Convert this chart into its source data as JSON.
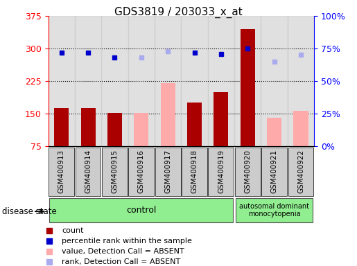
{
  "title": "GDS3819 / 203033_x_at",
  "samples": [
    "GSM400913",
    "GSM400914",
    "GSM400915",
    "GSM400916",
    "GSM400917",
    "GSM400918",
    "GSM400919",
    "GSM400920",
    "GSM400921",
    "GSM400922"
  ],
  "bar_values": [
    163,
    163,
    152,
    152,
    220,
    175,
    200,
    345,
    140,
    157
  ],
  "bar_absent": [
    false,
    false,
    false,
    true,
    true,
    false,
    false,
    false,
    true,
    true
  ],
  "rank_values": [
    72,
    72,
    68,
    68,
    73,
    72,
    71,
    75,
    65,
    70
  ],
  "rank_absent": [
    false,
    false,
    false,
    true,
    true,
    false,
    false,
    false,
    true,
    true
  ],
  "ylim_left": [
    75,
    375
  ],
  "ylim_right": [
    0,
    100
  ],
  "yticks_left": [
    75,
    150,
    225,
    300,
    375
  ],
  "yticks_right": [
    0,
    25,
    50,
    75,
    100
  ],
  "ytick_labels_right": [
    "0%",
    "25%",
    "50%",
    "75%",
    "100%"
  ],
  "control_samples": 7,
  "disease_samples": 3,
  "control_label": "control",
  "disease_label": "autosomal dominant\nmonocytopenia",
  "disease_state_label": "disease state",
  "color_bar_present": "#aa0000",
  "color_bar_absent": "#ffaaaa",
  "color_rank_present": "#0000cc",
  "color_rank_absent": "#aaaaee",
  "legend_items": [
    {
      "label": "count",
      "color": "#aa0000"
    },
    {
      "label": "percentile rank within the sample",
      "color": "#0000cc"
    },
    {
      "label": "value, Detection Call = ABSENT",
      "color": "#ffaaaa"
    },
    {
      "label": "rank, Detection Call = ABSENT",
      "color": "#aaaaee"
    }
  ],
  "dotted_lines": [
    150,
    225,
    300
  ],
  "col_bg_color": "#cccccc",
  "green_box_color": "#90ee90"
}
